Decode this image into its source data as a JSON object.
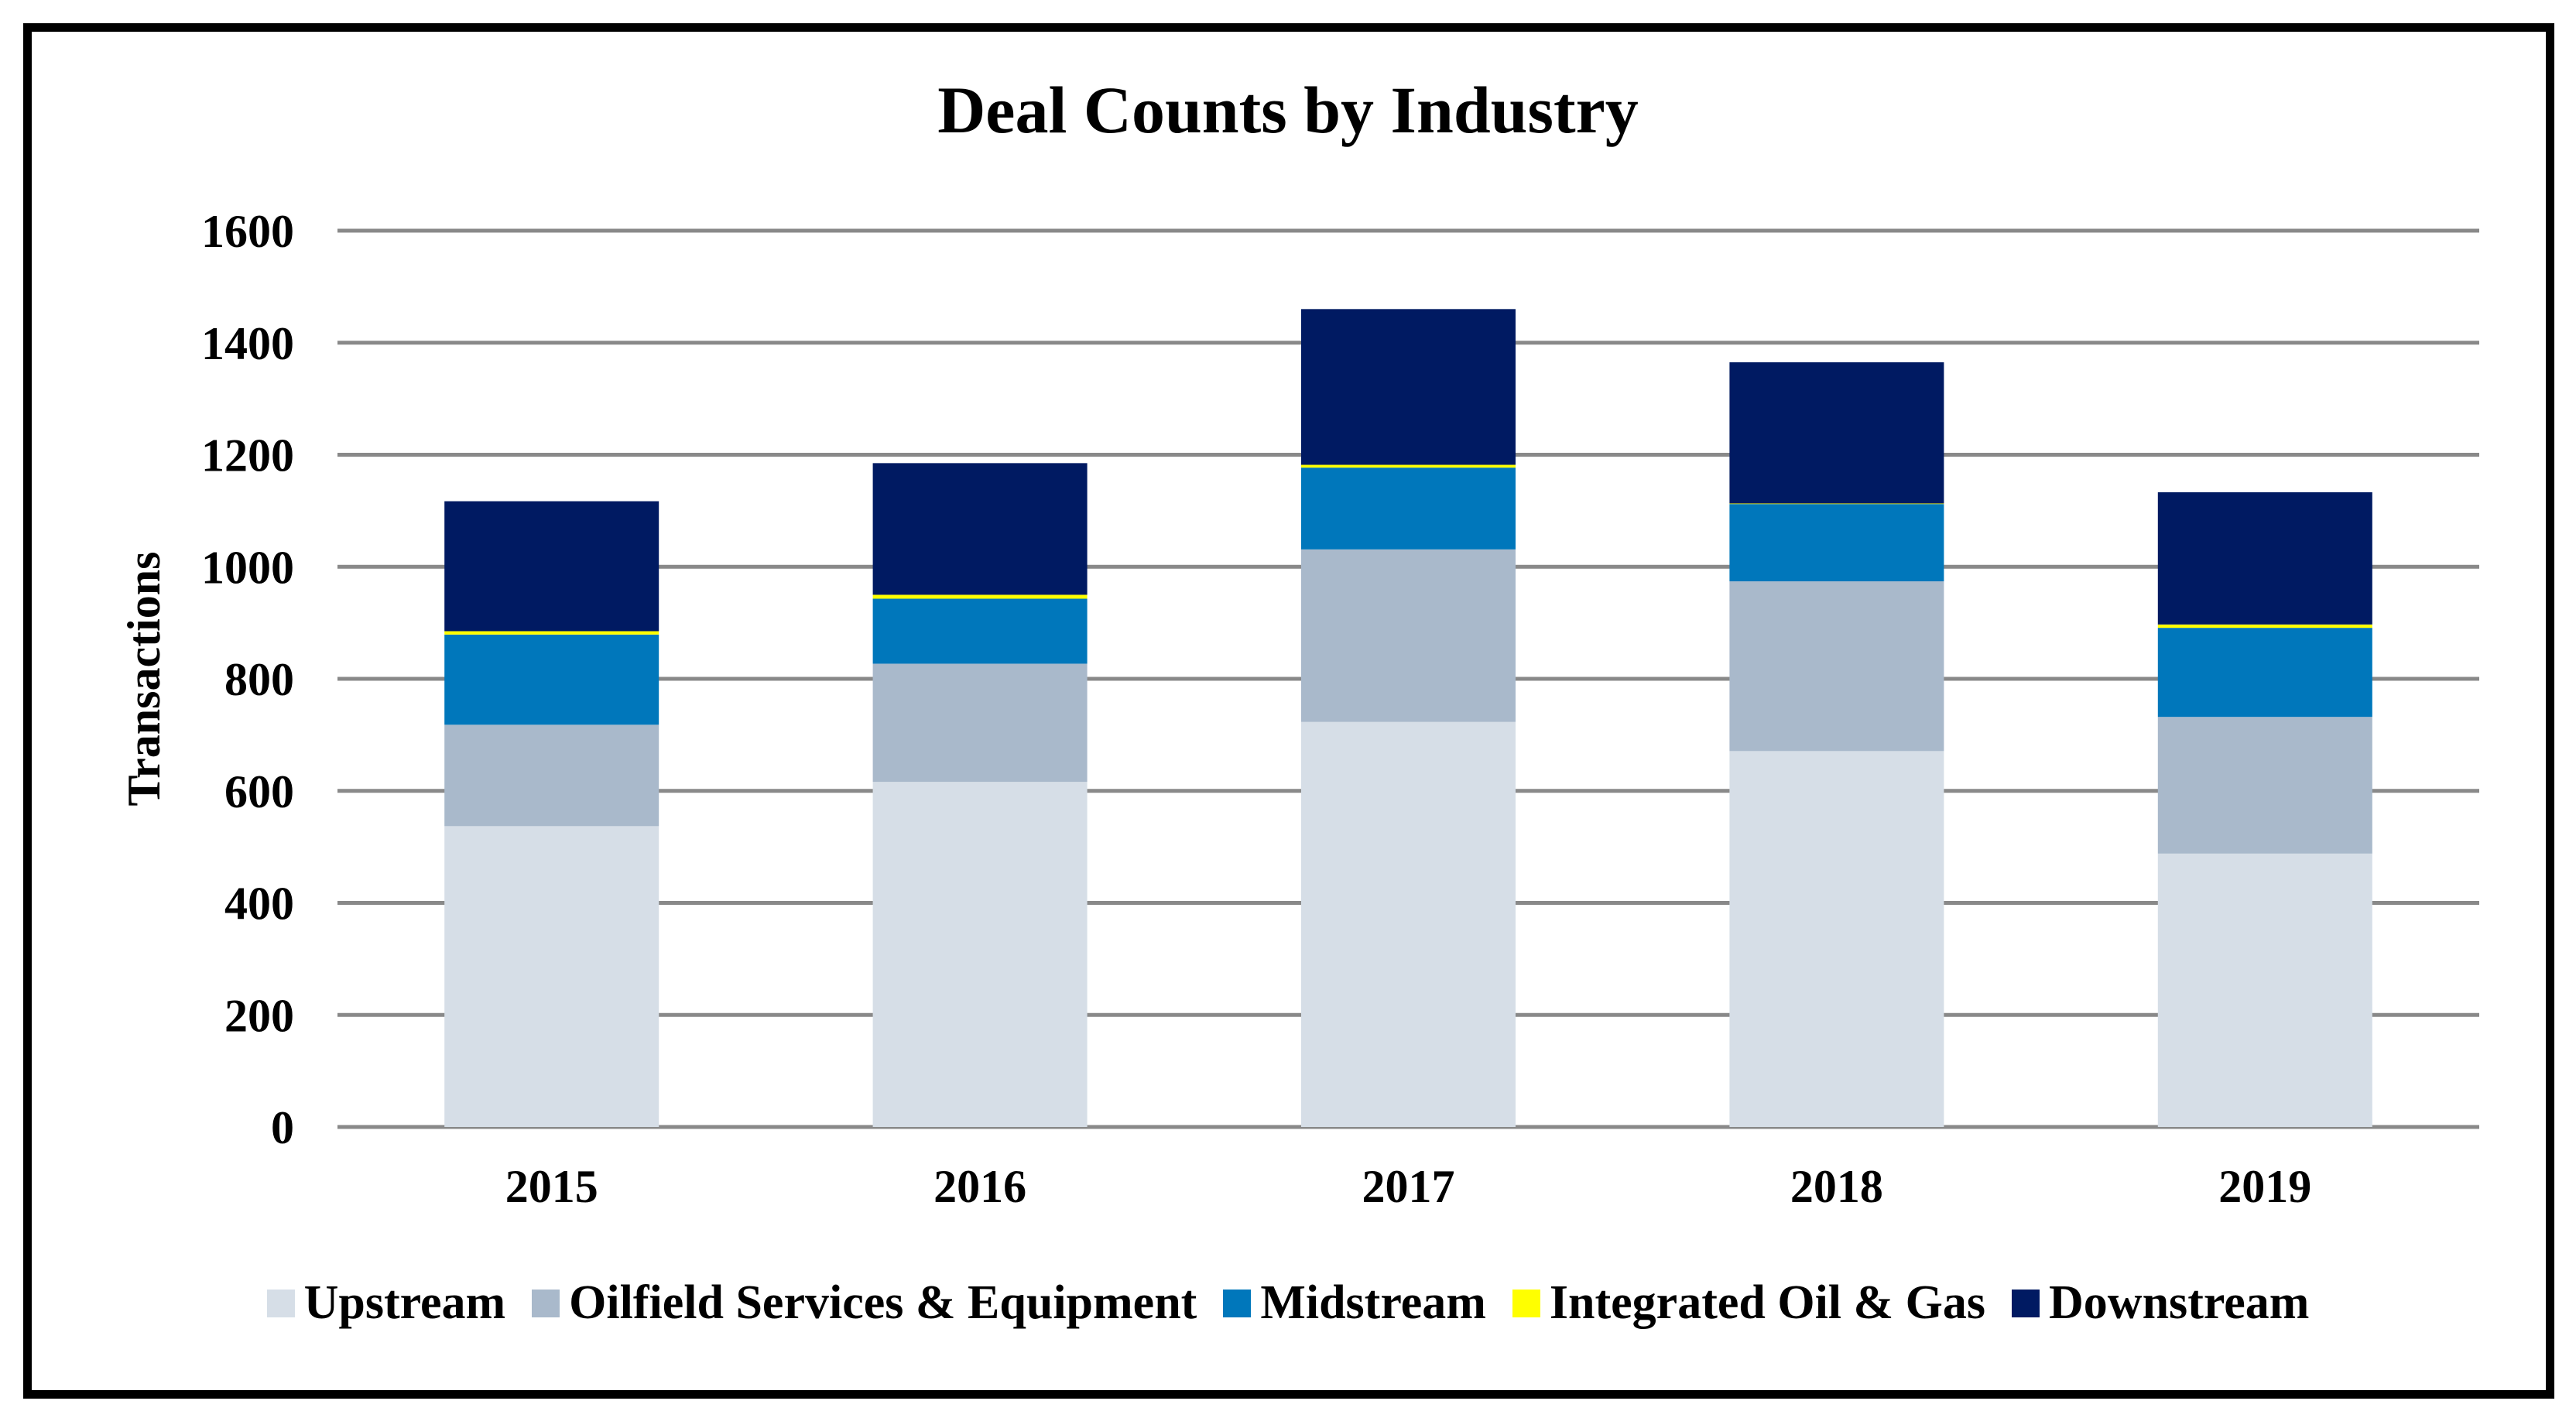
{
  "chart_data": {
    "type": "bar",
    "stacked": true,
    "title": "Deal Counts by Industry",
    "xlabel": "",
    "ylabel": "Transactions",
    "ylim": [
      0,
      1600
    ],
    "yticks": [
      0,
      200,
      400,
      600,
      800,
      1000,
      1200,
      1400,
      1600
    ],
    "grid": true,
    "legend_position": "bottom",
    "categories": [
      "2015",
      "2016",
      "2017",
      "2018",
      "2019"
    ],
    "series": [
      {
        "name": "Upstream",
        "color": "#d6dee7",
        "values": [
          537,
          616,
          723,
          671,
          488
        ]
      },
      {
        "name": "Oilfield Services & Equipment",
        "color": "#a9b9cb",
        "values": [
          181,
          211,
          308,
          303,
          244
        ]
      },
      {
        "name": "Midstream",
        "color": "#0077bb",
        "values": [
          161,
          116,
          146,
          138,
          159
        ]
      },
      {
        "name": "Integrated Oil & Gas",
        "color": "#ffff00",
        "values": [
          6,
          7,
          5,
          1,
          6
        ]
      },
      {
        "name": "Downstream",
        "color": "#001a62",
        "values": [
          232,
          235,
          278,
          252,
          236
        ]
      }
    ]
  }
}
